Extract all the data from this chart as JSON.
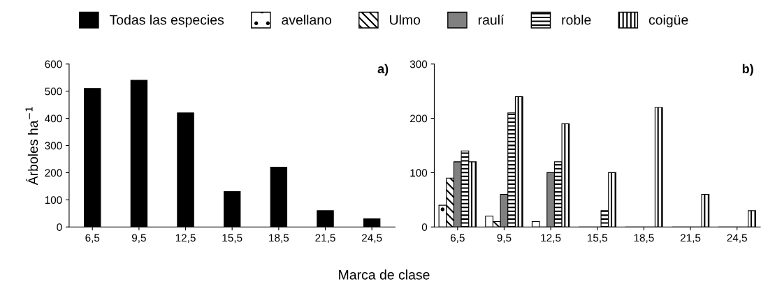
{
  "chart_data": [
    {
      "type": "bar",
      "title": "a)",
      "xlabel": "Marca de clase",
      "ylabel": "Árboles ha$^{−1}$",
      "categories": [
        "6,5",
        "9,5",
        "12,5",
        "15,5",
        "18,5",
        "21,5",
        "24,5"
      ],
      "series": [
        {
          "name": "Todas las especies",
          "color": "#000000",
          "values": [
            510,
            540,
            420,
            130,
            220,
            60,
            30
          ]
        }
      ],
      "ylim": [
        0,
        600
      ],
      "yticks": [
        0,
        100,
        200,
        300,
        400,
        500,
        600
      ],
      "grid": false,
      "legend": "top"
    },
    {
      "type": "bar",
      "title": "b)",
      "categories": [
        "6,5",
        "9,5",
        "12,5",
        "15,5",
        "18,5",
        "21,5",
        "24,5"
      ],
      "series": [
        {
          "name": "avellano",
          "color": "#000000",
          "values": [
            40,
            20,
            10,
            0,
            0,
            0,
            0
          ]
        },
        {
          "name": "Ulmo",
          "color": "#000000",
          "values": [
            90,
            10,
            0,
            0,
            0,
            0,
            0
          ]
        },
        {
          "name": "raulí",
          "color": "#808080",
          "values": [
            120,
            60,
            100,
            0,
            0,
            0,
            0
          ]
        },
        {
          "name": "roble",
          "color": "#000000",
          "values": [
            140,
            210,
            120,
            30,
            0,
            0,
            0
          ]
        },
        {
          "name": "coigüe",
          "color": "#000000",
          "values": [
            120,
            240,
            190,
            100,
            220,
            60,
            30
          ]
        }
      ],
      "ylim": [
        0,
        300
      ],
      "yticks": [
        0,
        100,
        200,
        300
      ],
      "grid": false,
      "legend": "top"
    }
  ]
}
